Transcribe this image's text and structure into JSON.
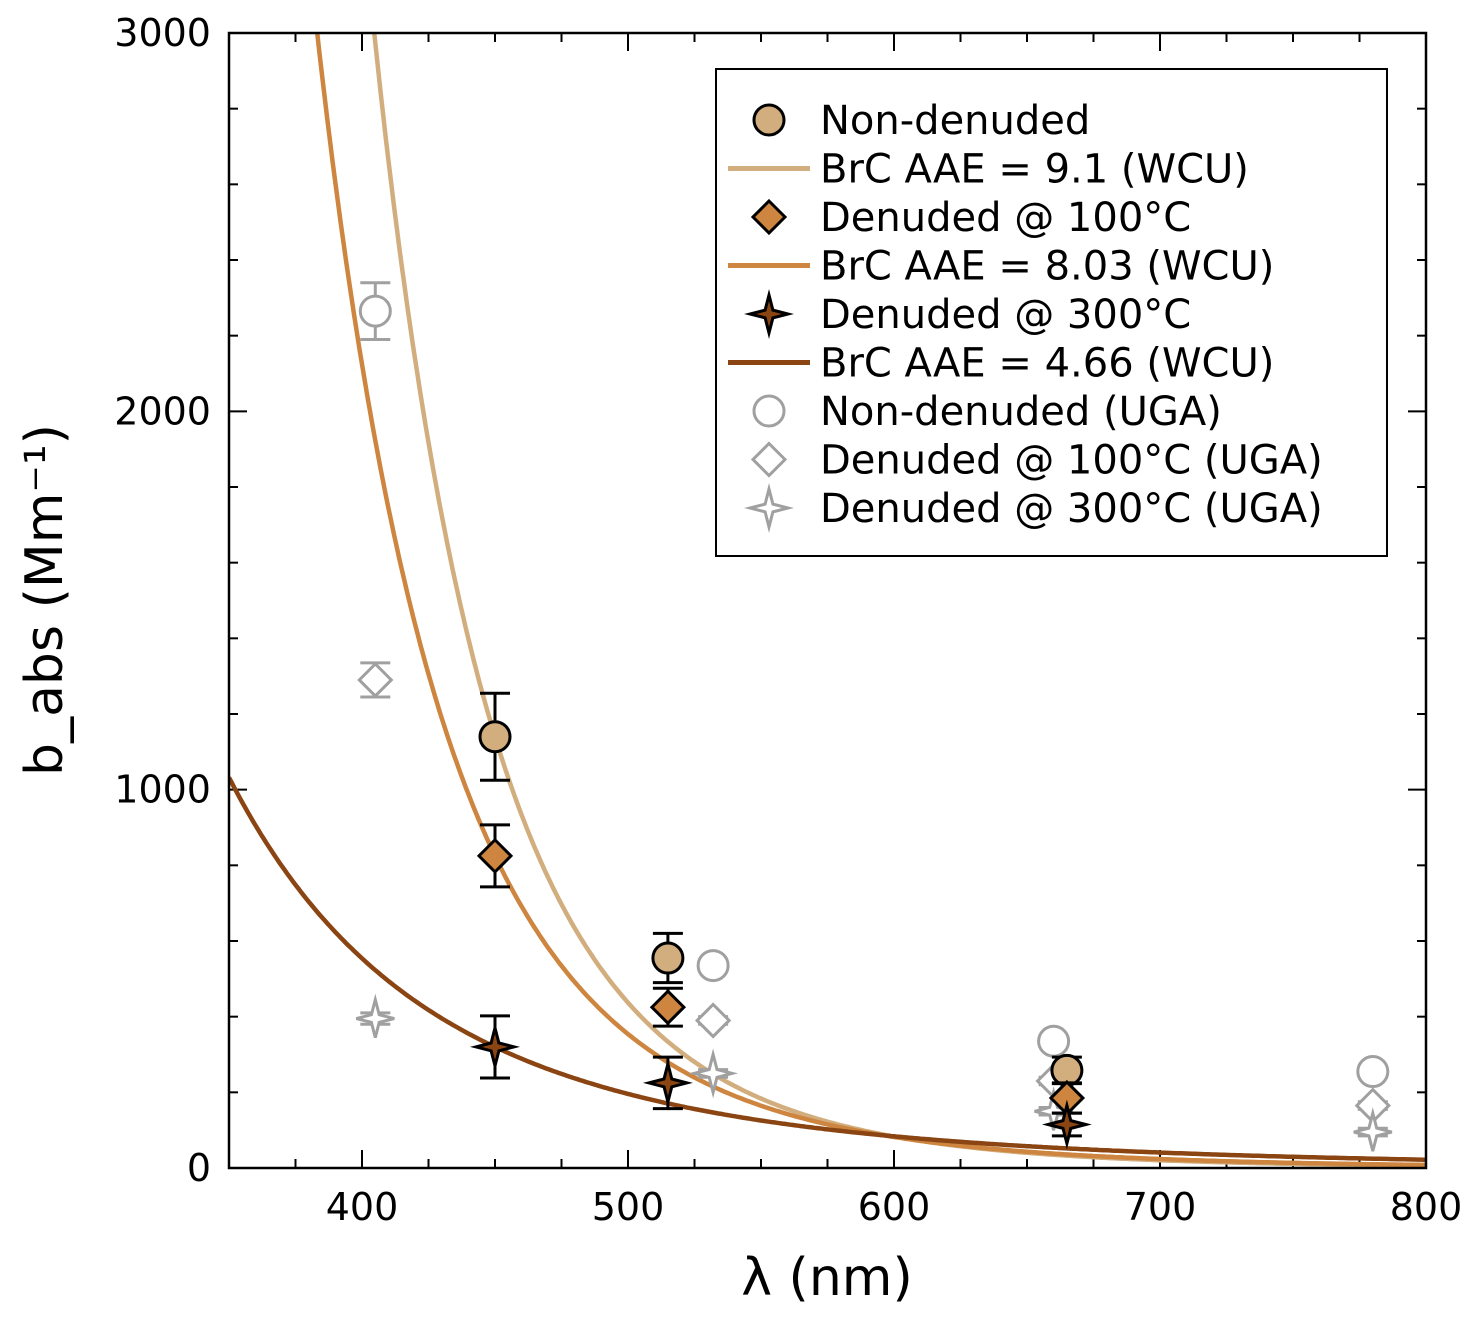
{
  "chart_data": {
    "type": "scatter",
    "xlabel": "λ (nm)",
    "ylabel": "b_abs (Mm⁻¹)",
    "xlim": [
      350,
      800
    ],
    "ylim": [
      0,
      3000
    ],
    "x_ticks": [
      400,
      500,
      600,
      700,
      800
    ],
    "y_ticks": [
      0,
      1000,
      2000,
      3000
    ],
    "x_minor_step": 25,
    "y_minor_step": 200,
    "legend_position": "top-right",
    "colors": {
      "tan": "#D2AE7E",
      "orange": "#CD853F",
      "brown": "#8B4513",
      "gray": "#a0a0a0"
    },
    "series": [
      {
        "name": "Non-denuded",
        "kind": "points",
        "marker": "circle",
        "filled": true,
        "color": "#D2AE7E",
        "points": [
          {
            "x": 450,
            "y": 1140,
            "err": 115
          },
          {
            "x": 515,
            "y": 555,
            "err": 65
          },
          {
            "x": 665,
            "y": 258,
            "err": 35
          }
        ]
      },
      {
        "name": "BrC AAE = 9.1 (WCU)",
        "kind": "line",
        "color": "#D2AE7E",
        "aae": 9.1,
        "ref_x": 450,
        "ref_y": 1140
      },
      {
        "name": "Denuded @ 100°C",
        "kind": "points",
        "marker": "diamond",
        "filled": true,
        "color": "#CD853F",
        "points": [
          {
            "x": 450,
            "y": 825,
            "err": 82
          },
          {
            "x": 515,
            "y": 425,
            "err": 50
          },
          {
            "x": 665,
            "y": 185,
            "err": 40
          }
        ]
      },
      {
        "name": "BrC AAE = 8.03 (WCU)",
        "kind": "line",
        "color": "#CD853F",
        "aae": 8.03,
        "ref_x": 450,
        "ref_y": 825
      },
      {
        "name": "Denuded @ 300°C",
        "kind": "points",
        "marker": "star",
        "filled": true,
        "color": "#8B4513",
        "points": [
          {
            "x": 450,
            "y": 320,
            "err": 82
          },
          {
            "x": 515,
            "y": 225,
            "err": 68
          },
          {
            "x": 665,
            "y": 115,
            "err": 30
          }
        ]
      },
      {
        "name": "BrC AAE = 4.66 (WCU)",
        "kind": "line",
        "color": "#8B4513",
        "aae": 4.66,
        "ref_x": 450,
        "ref_y": 320
      },
      {
        "name": "Non-denuded (UGA)",
        "kind": "points",
        "marker": "circle",
        "filled": false,
        "color": "#a0a0a0",
        "points": [
          {
            "x": 405,
            "y": 2265,
            "err": 75
          },
          {
            "x": 532,
            "y": 535,
            "err": 10
          },
          {
            "x": 660,
            "y": 335,
            "err": 10
          },
          {
            "x": 780,
            "y": 255,
            "err": 10
          }
        ]
      },
      {
        "name": "Denuded @ 100°C (UGA)",
        "kind": "points",
        "marker": "diamond",
        "filled": false,
        "color": "#a0a0a0",
        "points": [
          {
            "x": 405,
            "y": 1290,
            "err": 45
          },
          {
            "x": 532,
            "y": 390,
            "err": 10
          },
          {
            "x": 660,
            "y": 230,
            "err": 10
          },
          {
            "x": 780,
            "y": 165,
            "err": 10
          }
        ]
      },
      {
        "name": "Denuded @ 300°C (UGA)",
        "kind": "points",
        "marker": "star",
        "filled": false,
        "color": "#a0a0a0",
        "points": [
          {
            "x": 405,
            "y": 395,
            "err": 15
          },
          {
            "x": 532,
            "y": 250,
            "err": 10
          },
          {
            "x": 660,
            "y": 150,
            "err": 10
          },
          {
            "x": 780,
            "y": 95,
            "err": 10
          }
        ]
      }
    ]
  }
}
